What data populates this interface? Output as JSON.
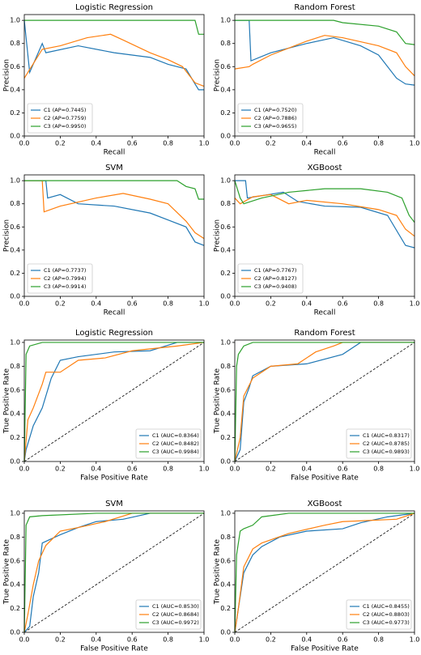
{
  "chart_data": [
    {
      "type": "line",
      "title": "Logistic Regression",
      "x_label": "Recall",
      "y_label": "Precision",
      "legend": "lower left",
      "xlim": [
        0,
        1
      ],
      "ylim": [
        0,
        1.05
      ],
      "xticks": [
        {
          "value": 0,
          "label": "0.0"
        },
        0.2,
        0.4,
        0.6,
        0.8,
        {
          "value": 1,
          "label": "1.0"
        }
      ],
      "yticks": [
        {
          "value": 0,
          "label": "0.0"
        },
        0.2,
        0.4,
        0.6,
        0.8,
        {
          "value": 1,
          "label": "1.0"
        }
      ],
      "series": [
        {
          "name": "C1 (AP=0.7445)",
          "color": "#1f77b4",
          "x": [
            0,
            0.03,
            0.1,
            0.12,
            0.3,
            0.5,
            0.6,
            0.7,
            0.8,
            0.85,
            0.9,
            0.95,
            0.97,
            1
          ],
          "values": [
            1,
            0.55,
            0.8,
            0.72,
            0.78,
            0.72,
            0.7,
            0.68,
            0.62,
            0.6,
            0.58,
            0.45,
            0.4,
            0.4
          ]
        },
        {
          "name": "C2 (AP=0.7759)",
          "color": "#ff7f0e",
          "x": [
            0,
            0.02,
            0.1,
            0.2,
            0.35,
            0.48,
            0.55,
            0.7,
            0.8,
            0.88,
            0.95,
            1
          ],
          "values": [
            0.5,
            0.55,
            0.75,
            0.78,
            0.85,
            0.88,
            0.83,
            0.72,
            0.66,
            0.6,
            0.46,
            0.43
          ]
        },
        {
          "name": "C3 (AP=0.9950)",
          "color": "#2ca02c",
          "x": [
            0,
            0.95,
            0.97,
            1
          ],
          "values": [
            1,
            1,
            0.88,
            0.88
          ]
        }
      ]
    },
    {
      "type": "line",
      "title": "Random Forest",
      "x_label": "Recall",
      "y_label": "Precision",
      "legend": "lower left",
      "xlim": [
        0,
        1
      ],
      "ylim": [
        0,
        1.05
      ],
      "xticks": [
        {
          "value": 0,
          "label": "0.0"
        },
        0.2,
        0.4,
        0.6,
        0.8,
        {
          "value": 1,
          "label": "1.0"
        }
      ],
      "yticks": [
        {
          "value": 0,
          "label": "0.0"
        },
        0.2,
        0.4,
        0.6,
        0.8,
        {
          "value": 1,
          "label": "1.0"
        }
      ],
      "series": [
        {
          "name": "C1 (AP=0.7520)",
          "color": "#1f77b4",
          "x": [
            0,
            0.08,
            0.09,
            0.2,
            0.4,
            0.55,
            0.7,
            0.8,
            0.9,
            0.95,
            1
          ],
          "values": [
            1,
            1,
            0.65,
            0.72,
            0.8,
            0.85,
            0.78,
            0.7,
            0.5,
            0.45,
            0.44
          ]
        },
        {
          "name": "C2 (AP=0.7886)",
          "color": "#ff7f0e",
          "x": [
            0,
            0.08,
            0.1,
            0.2,
            0.4,
            0.5,
            0.6,
            0.8,
            0.9,
            0.95,
            1
          ],
          "values": [
            0.58,
            0.6,
            0.62,
            0.7,
            0.82,
            0.87,
            0.85,
            0.78,
            0.72,
            0.6,
            0.52
          ]
        },
        {
          "name": "C3 (AP=0.9655)",
          "color": "#2ca02c",
          "x": [
            0,
            0.55,
            0.6,
            0.8,
            0.9,
            0.95,
            1
          ],
          "values": [
            1,
            1,
            0.98,
            0.95,
            0.9,
            0.8,
            0.79
          ]
        }
      ]
    },
    {
      "type": "line",
      "title": "SVM",
      "x_label": "Recall",
      "y_label": "Precision",
      "legend": "lower left",
      "xlim": [
        0,
        1
      ],
      "ylim": [
        0,
        1.05
      ],
      "xticks": [
        {
          "value": 0,
          "label": "0.0"
        },
        0.2,
        0.4,
        0.6,
        0.8,
        {
          "value": 1,
          "label": "1.0"
        }
      ],
      "yticks": [
        {
          "value": 0,
          "label": "0.0"
        },
        0.2,
        0.4,
        0.6,
        0.8,
        {
          "value": 1,
          "label": "1.0"
        }
      ],
      "series": [
        {
          "name": "C1 (AP=0.7737)",
          "color": "#1f77b4",
          "x": [
            0,
            0.12,
            0.13,
            0.2,
            0.3,
            0.5,
            0.7,
            0.8,
            0.9,
            0.95,
            1
          ],
          "values": [
            1,
            1,
            0.85,
            0.88,
            0.8,
            0.78,
            0.72,
            0.66,
            0.6,
            0.47,
            0.44
          ]
        },
        {
          "name": "C2 (AP=0.7994)",
          "color": "#ff7f0e",
          "x": [
            0,
            0.1,
            0.11,
            0.2,
            0.4,
            0.55,
            0.7,
            0.8,
            0.9,
            0.95,
            1
          ],
          "values": [
            1,
            1,
            0.73,
            0.78,
            0.85,
            0.89,
            0.84,
            0.8,
            0.65,
            0.55,
            0.5
          ]
        },
        {
          "name": "C3 (AP=0.9914)",
          "color": "#2ca02c",
          "x": [
            0,
            0.85,
            0.9,
            0.95,
            0.97,
            1
          ],
          "values": [
            1,
            1,
            0.95,
            0.93,
            0.84,
            0.84
          ]
        }
      ]
    },
    {
      "type": "line",
      "title": "XGBoost",
      "x_label": "Recall",
      "y_label": "Precision",
      "legend": "lower left",
      "xlim": [
        0,
        1
      ],
      "ylim": [
        0,
        1.05
      ],
      "xticks": [
        {
          "value": 0,
          "label": "0.0"
        },
        0.2,
        0.4,
        0.6,
        0.8,
        {
          "value": 1,
          "label": "1.0"
        }
      ],
      "yticks": [
        {
          "value": 0,
          "label": "0.0"
        },
        0.2,
        0.4,
        0.6,
        0.8,
        {
          "value": 1,
          "label": "1.0"
        }
      ],
      "series": [
        {
          "name": "C1 (AP=0.7767)",
          "color": "#1f77b4",
          "x": [
            0,
            0.06,
            0.07,
            0.15,
            0.27,
            0.35,
            0.5,
            0.7,
            0.85,
            0.95,
            1
          ],
          "values": [
            1,
            1,
            0.85,
            0.87,
            0.9,
            0.82,
            0.78,
            0.77,
            0.7,
            0.44,
            0.42
          ]
        },
        {
          "name": "C2 (AP=0.8127)",
          "color": "#ff7f0e",
          "x": [
            0,
            0.03,
            0.1,
            0.2,
            0.3,
            0.4,
            0.6,
            0.8,
            0.9,
            0.95,
            1
          ],
          "values": [
            0.85,
            0.8,
            0.86,
            0.88,
            0.8,
            0.83,
            0.8,
            0.75,
            0.7,
            0.58,
            0.52
          ]
        },
        {
          "name": "C3 (AP=0.9408)",
          "color": "#2ca02c",
          "x": [
            0,
            0.03,
            0.05,
            0.15,
            0.3,
            0.5,
            0.7,
            0.85,
            0.93,
            0.97,
            1
          ],
          "values": [
            1,
            0.85,
            0.8,
            0.85,
            0.9,
            0.93,
            0.93,
            0.9,
            0.85,
            0.7,
            0.64
          ]
        }
      ]
    },
    {
      "type": "line",
      "title": "Logistic Regression",
      "x_label": "False Positive Rate",
      "y_label": "True Positive Rate",
      "legend": "lower right",
      "diagonal": true,
      "xlim": [
        0,
        1
      ],
      "ylim": [
        0,
        1.02
      ],
      "xticks": [
        {
          "value": 0,
          "label": "0.0"
        },
        0.2,
        0.4,
        0.6,
        0.8,
        {
          "value": 1,
          "label": "1.0"
        }
      ],
      "yticks": [
        {
          "value": 0,
          "label": "0.0"
        },
        0.2,
        0.4,
        0.6,
        0.8,
        {
          "value": 1,
          "label": "1.0"
        }
      ],
      "series": [
        {
          "name": "C1 (AUC=0.8364)",
          "color": "#1f77b4",
          "x": [
            0,
            0.01,
            0.05,
            0.1,
            0.15,
            0.2,
            0.3,
            0.5,
            0.7,
            0.85,
            1
          ],
          "values": [
            0,
            0.1,
            0.3,
            0.45,
            0.7,
            0.85,
            0.88,
            0.92,
            0.93,
            1,
            1
          ]
        },
        {
          "name": "C2 (AUC=0.8482)",
          "color": "#ff7f0e",
          "x": [
            0,
            0.02,
            0.05,
            0.1,
            0.12,
            0.2,
            0.3,
            0.45,
            0.6,
            0.85,
            1
          ],
          "values": [
            0,
            0.35,
            0.45,
            0.65,
            0.75,
            0.75,
            0.85,
            0.87,
            0.93,
            0.97,
            1
          ]
        },
        {
          "name": "C3 (AUC=0.9984)",
          "color": "#2ca02c",
          "x": [
            0,
            0.01,
            0.03,
            0.1,
            1
          ],
          "values": [
            0,
            0.9,
            0.97,
            1,
            1
          ]
        }
      ]
    },
    {
      "type": "line",
      "title": "Random Forest",
      "x_label": "False Positive Rate",
      "y_label": "True Positive Rate",
      "legend": "lower right",
      "diagonal": true,
      "xlim": [
        0,
        1
      ],
      "ylim": [
        0,
        1.02
      ],
      "xticks": [
        {
          "value": 0,
          "label": "0.0"
        },
        0.2,
        0.4,
        0.6,
        0.8,
        {
          "value": 1,
          "label": "1.0"
        }
      ],
      "yticks": [
        {
          "value": 0,
          "label": "0.0"
        },
        0.2,
        0.4,
        0.6,
        0.8,
        {
          "value": 1,
          "label": "1.0"
        }
      ],
      "series": [
        {
          "name": "C1 (AUC=0.8317)",
          "color": "#1f77b4",
          "x": [
            0,
            0.03,
            0.05,
            0.08,
            0.1,
            0.2,
            0.4,
            0.6,
            0.7,
            1
          ],
          "values": [
            0,
            0.1,
            0.5,
            0.62,
            0.72,
            0.8,
            0.82,
            0.9,
            1,
            1
          ]
        },
        {
          "name": "C2 (AUC=0.8785)",
          "color": "#ff7f0e",
          "x": [
            0,
            0.03,
            0.05,
            0.1,
            0.2,
            0.35,
            0.45,
            0.55,
            0.6,
            1
          ],
          "values": [
            0,
            0.2,
            0.55,
            0.7,
            0.8,
            0.82,
            0.92,
            0.97,
            1,
            1
          ]
        },
        {
          "name": "C3 (AUC=0.9893)",
          "color": "#2ca02c",
          "x": [
            0,
            0.01,
            0.02,
            0.05,
            0.1,
            1
          ],
          "values": [
            0,
            0.8,
            0.9,
            0.97,
            1,
            1
          ]
        }
      ]
    },
    {
      "type": "line",
      "title": "SVM",
      "x_label": "False Positive Rate",
      "y_label": "True Positive Rate",
      "legend": "lower right",
      "diagonal": true,
      "xlim": [
        0,
        1
      ],
      "ylim": [
        0,
        1.02
      ],
      "xticks": [
        {
          "value": 0,
          "label": "0.0"
        },
        0.2,
        0.4,
        0.6,
        0.8,
        {
          "value": 1,
          "label": "1.0"
        }
      ],
      "yticks": [
        {
          "value": 0,
          "label": "0.0"
        },
        0.2,
        0.4,
        0.6,
        0.8,
        {
          "value": 1,
          "label": "1.0"
        }
      ],
      "series": [
        {
          "name": "C1 (AUC=0.8530)",
          "color": "#1f77b4",
          "x": [
            0,
            0.03,
            0.05,
            0.08,
            0.1,
            0.2,
            0.3,
            0.4,
            0.55,
            0.7,
            1
          ],
          "values": [
            0,
            0.05,
            0.3,
            0.5,
            0.75,
            0.82,
            0.88,
            0.93,
            0.95,
            1,
            1
          ]
        },
        {
          "name": "C2 (AUC=0.8684)",
          "color": "#ff7f0e",
          "x": [
            0,
            0.02,
            0.05,
            0.08,
            0.12,
            0.2,
            0.3,
            0.45,
            0.6,
            1
          ],
          "values": [
            0,
            0.15,
            0.4,
            0.6,
            0.73,
            0.85,
            0.88,
            0.93,
            1,
            1
          ]
        },
        {
          "name": "C3 (AUC=0.9972)",
          "color": "#2ca02c",
          "x": [
            0,
            0.01,
            0.03,
            0.1,
            0.4,
            1
          ],
          "values": [
            0,
            0.9,
            0.97,
            0.98,
            1,
            1
          ]
        }
      ]
    },
    {
      "type": "line",
      "title": "XGBoost",
      "x_label": "False Positive Rate",
      "y_label": "True Positive Rate",
      "legend": "lower right",
      "diagonal": true,
      "xlim": [
        0,
        1
      ],
      "ylim": [
        0,
        1.02
      ],
      "xticks": [
        {
          "value": 0,
          "label": "0.0"
        },
        0.2,
        0.4,
        0.6,
        0.8,
        {
          "value": 1,
          "label": "1.0"
        }
      ],
      "yticks": [
        {
          "value": 0,
          "label": "0.0"
        },
        0.2,
        0.4,
        0.6,
        0.8,
        {
          "value": 1,
          "label": "1.0"
        }
      ],
      "series": [
        {
          "name": "C1 (AUC=0.8455)",
          "color": "#1f77b4",
          "x": [
            0,
            0.03,
            0.05,
            0.1,
            0.15,
            0.25,
            0.4,
            0.6,
            0.7,
            0.85,
            1
          ],
          "values": [
            0,
            0.3,
            0.5,
            0.65,
            0.72,
            0.8,
            0.85,
            0.87,
            0.92,
            0.97,
            1
          ]
        },
        {
          "name": "C2 (AUC=0.8803)",
          "color": "#ff7f0e",
          "x": [
            0,
            0.02,
            0.05,
            0.1,
            0.15,
            0.3,
            0.5,
            0.6,
            0.9,
            1
          ],
          "values": [
            0,
            0.2,
            0.55,
            0.7,
            0.75,
            0.83,
            0.9,
            0.93,
            0.95,
            1
          ]
        },
        {
          "name": "C3 (AUC=0.9773)",
          "color": "#2ca02c",
          "x": [
            0,
            0.01,
            0.03,
            0.05,
            0.1,
            0.15,
            0.3,
            1
          ],
          "values": [
            0,
            0.65,
            0.85,
            0.87,
            0.9,
            0.97,
            1,
            1
          ]
        }
      ]
    }
  ]
}
